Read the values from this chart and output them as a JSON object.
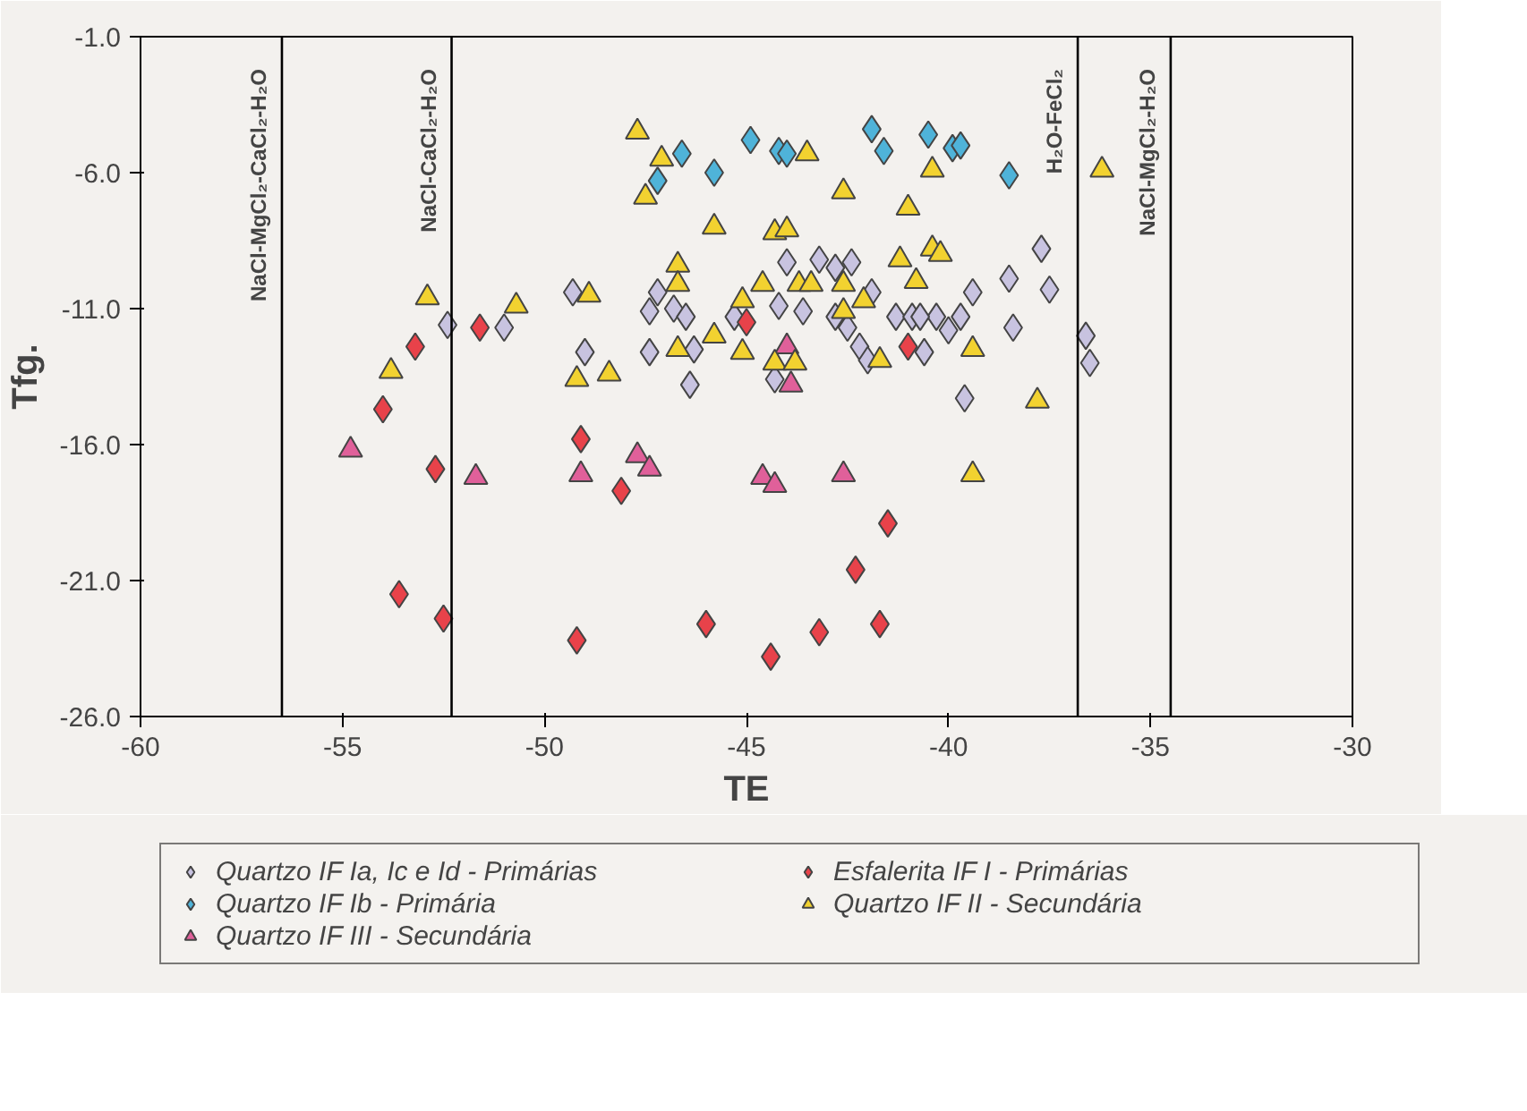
{
  "chart_data": {
    "type": "scatter",
    "xlabel": "TE",
    "ylabel": "Tfg.",
    "xlim": [
      -60,
      -30
    ],
    "ylim": [
      -26,
      -1
    ],
    "xticks": [
      -60,
      -55,
      -50,
      -45,
      -40,
      -35,
      -30
    ],
    "yticks": [
      {
        "value": -1,
        "label": "-1.0"
      },
      {
        "value": -6,
        "label": "-6.0"
      },
      {
        "value": -11,
        "label": "-11.0"
      },
      {
        "value": -16,
        "label": "-16.0"
      },
      {
        "value": -21,
        "label": "-21.0"
      },
      {
        "value": -26,
        "label": "-26.0"
      }
    ],
    "grid": false,
    "legend": "bottom",
    "ref_lines": [
      {
        "axis": "x",
        "value": -56.5,
        "label": "NaCl-MgCl₂-CaCl₂-H₂O"
      },
      {
        "axis": "x",
        "value": -52.3,
        "label": "NaCl-CaCl₂-H₂O"
      },
      {
        "axis": "x",
        "value": -36.8,
        "label": "H₂O-FeCl₂"
      },
      {
        "axis": "x",
        "value": -34.5,
        "label": "NaCl-MgCl₂-H₂O"
      }
    ],
    "series": [
      {
        "name": "Quartzo IF Ia, Ic e Id - Primárias",
        "color": "#c8c3e0",
        "marker": "diamond",
        "x": [
          -52.4,
          -51.0,
          -49.3,
          -49.0,
          -47.4,
          -47.2,
          -46.8,
          -46.5,
          -47.4,
          -46.3,
          -46.4,
          -45.8,
          -45.3,
          -45.0,
          -44.2,
          -44.0,
          -43.6,
          -43.2,
          -42.8,
          -42.4,
          -41.9,
          -42.5,
          -42.2,
          -42.0,
          -41.3,
          -40.9,
          -40.6,
          -44.3,
          -42.8,
          -37.7,
          -38.5,
          -37.5,
          -39.4,
          -39.7,
          -40.0,
          -40.3,
          -40.7,
          -38.4,
          -39.6,
          -36.6,
          -36.5
        ],
        "values": [
          -11.6,
          -11.7,
          -10.4,
          -12.6,
          -11.1,
          -10.4,
          -11.0,
          -11.3,
          -12.6,
          -12.5,
          -13.8,
          null,
          -11.3,
          null,
          -10.9,
          -9.3,
          -11.1,
          -9.2,
          -9.5,
          -9.3,
          -10.4,
          -11.7,
          -12.4,
          -12.9,
          -11.3,
          -11.3,
          -12.6,
          -13.6,
          -11.3,
          -8.8,
          -9.9,
          -10.3,
          -10.4,
          -11.3,
          -11.8,
          -11.3,
          -11.3,
          -11.7,
          -14.3,
          -12.0,
          -13.0
        ]
      },
      {
        "name": "Quartzo IF Ib - Primária",
        "color": "#4fb3d9",
        "marker": "diamond",
        "x": [
          -46.6,
          -47.2,
          -45.8,
          -44.9,
          -44.2,
          -44.0,
          -41.9,
          -41.6,
          -40.5,
          -39.9,
          -39.7,
          -38.5
        ],
        "values": [
          -5.3,
          -6.3,
          -6.0,
          -4.8,
          -5.2,
          -5.3,
          -4.4,
          -5.2,
          -4.6,
          -5.1,
          -5.0,
          -6.1
        ]
      },
      {
        "name": "Quartzo IF III - Secundária",
        "color": "#e0609a",
        "marker": "triangle",
        "x": [
          -54.8,
          -51.7,
          -49.1,
          -47.7,
          -47.4,
          -44.6,
          -44.3,
          -42.6,
          -44.0,
          -43.9
        ],
        "values": [
          -16.2,
          -17.2,
          -17.1,
          -16.4,
          -16.9,
          -17.2,
          -17.5,
          -17.1,
          -12.4,
          -13.8
        ]
      },
      {
        "name": "Esfalerita IF I - Primárias",
        "color": "#e8424a",
        "marker": "diamond",
        "x": [
          -51.6,
          -53.2,
          -54.0,
          -52.7,
          -53.6,
          -52.5,
          -45.0,
          -41.0,
          -49.1,
          -48.1,
          -41.5,
          -42.3,
          -46.0,
          -49.2,
          -44.4,
          -43.2,
          -41.7
        ],
        "values": [
          -11.7,
          -12.4,
          -14.7,
          -16.9,
          -21.5,
          -22.4,
          -11.5,
          -12.4,
          -15.8,
          -17.7,
          -18.9,
          -20.6,
          -22.6,
          -23.2,
          -23.8,
          -22.9,
          -22.6
        ]
      },
      {
        "name": "Quartzo IF II - Secundária",
        "color": "#f2d230",
        "marker": "triangle",
        "x": [
          -52.9,
          -50.7,
          -53.8,
          -48.9,
          -49.2,
          -48.4,
          -47.7,
          -47.1,
          -47.5,
          -43.5,
          -42.6,
          -40.4,
          -41.0,
          -45.8,
          -44.3,
          -44.0,
          -41.2,
          -40.4,
          -40.2,
          -40.8,
          -46.7,
          -46.7,
          -46.7,
          -45.8,
          -45.1,
          -45.1,
          -44.6,
          -43.7,
          -43.4,
          -42.6,
          -42.6,
          -42.1,
          -44.3,
          -43.8,
          -41.7,
          -36.2,
          -39.4,
          -37.8,
          -39.4
        ],
        "values": [
          -10.6,
          -10.9,
          -13.3,
          -10.5,
          -13.6,
          -13.4,
          -4.5,
          -5.5,
          -6.9,
          -5.3,
          -6.7,
          -5.9,
          -7.3,
          -8.0,
          -8.2,
          -8.1,
          -9.2,
          -8.8,
          -9.0,
          -10.0,
          -9.4,
          -10.1,
          -12.5,
          -12.0,
          -12.6,
          -10.7,
          -10.1,
          -10.1,
          -10.1,
          -10.1,
          -11.1,
          -10.7,
          -13.0,
          -13.0,
          -12.9,
          -5.9,
          -12.5,
          -14.4,
          -17.1
        ]
      }
    ]
  }
}
